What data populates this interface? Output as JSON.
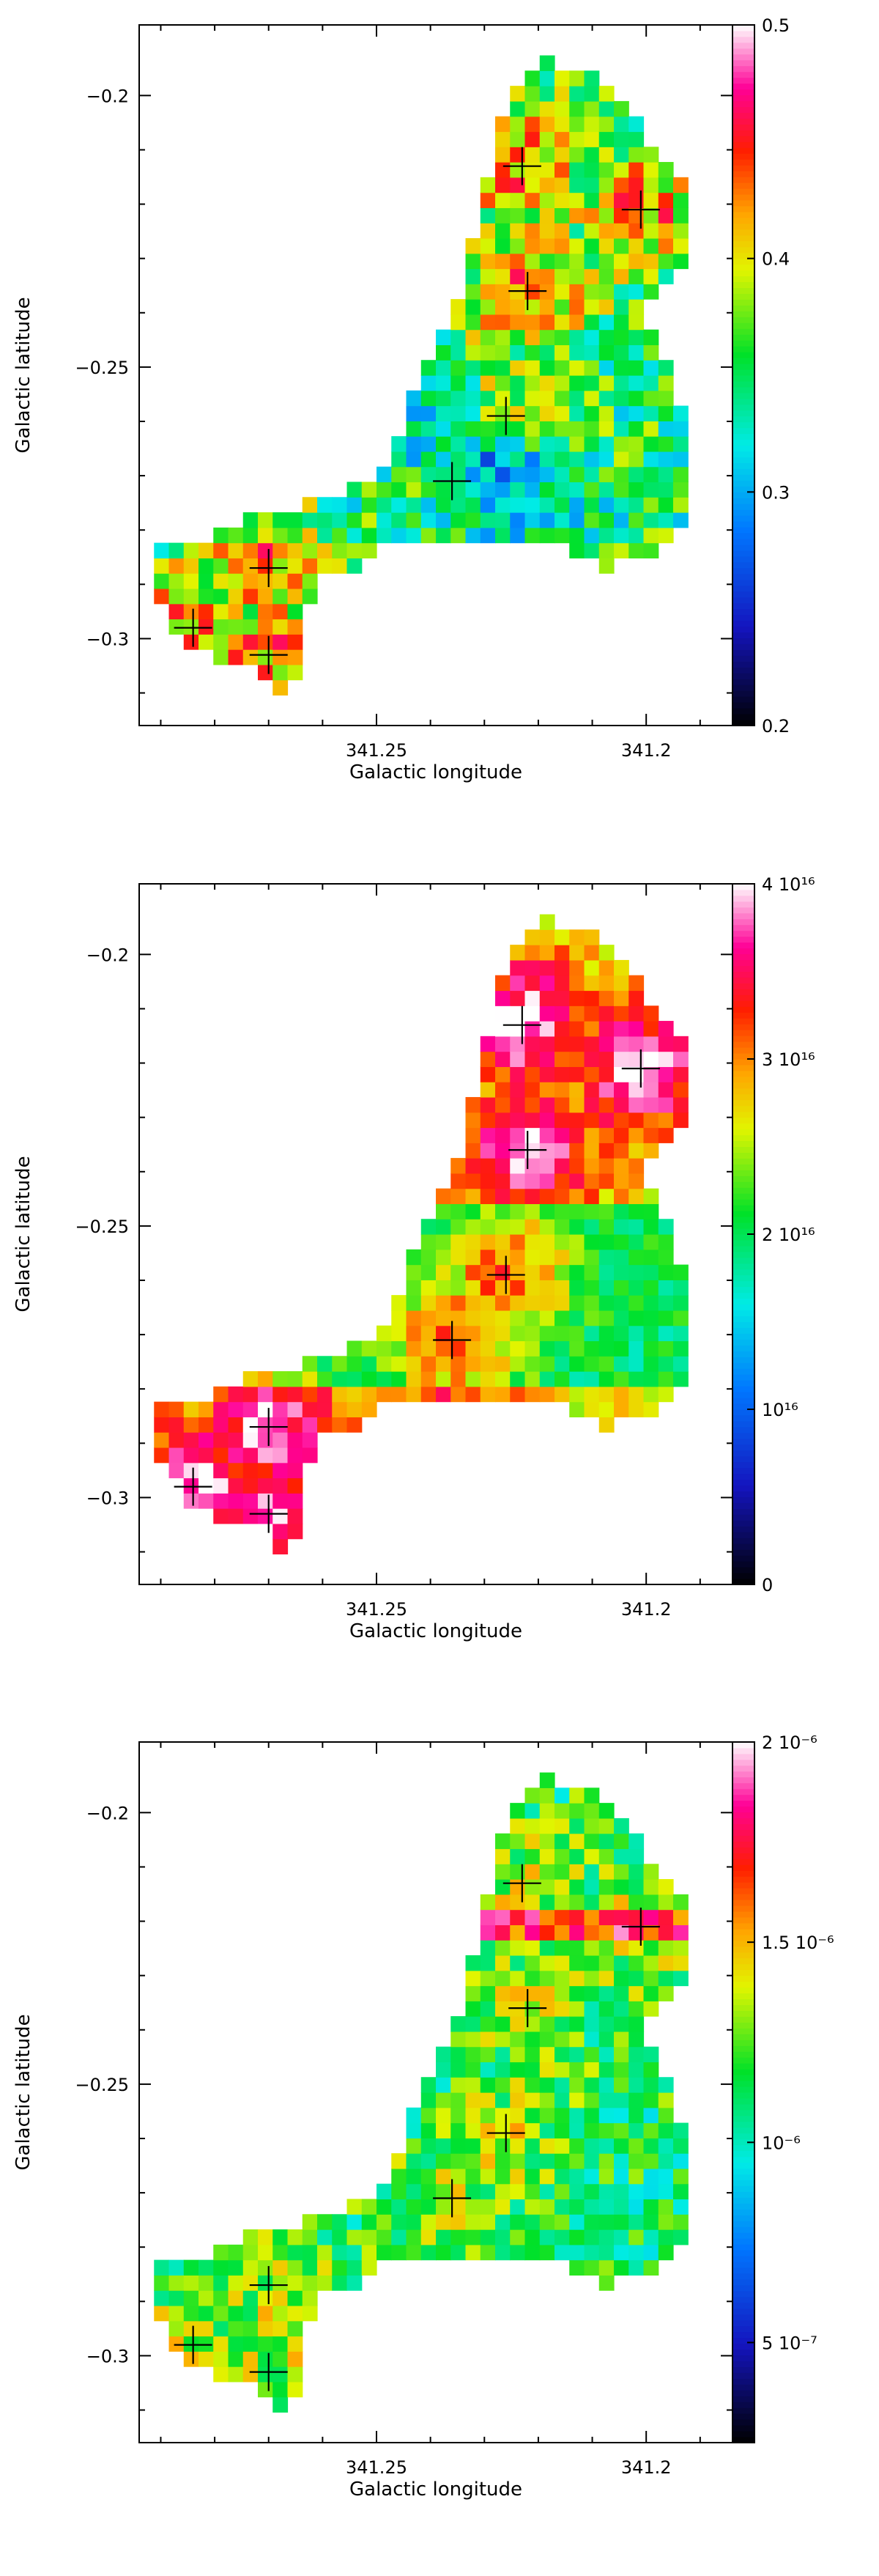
{
  "chart_data": [
    {
      "type": "heatmap",
      "xlabel": "Galactic longitude",
      "ylabel": "Galactic latitude",
      "x_ticks": [
        {
          "value": 341.25,
          "label": "341.25"
        },
        {
          "value": 341.2,
          "label": "341.2"
        }
      ],
      "y_ticks": [
        {
          "value": -0.2,
          "label": "−0.2"
        },
        {
          "value": -0.25,
          "label": "−0.25"
        },
        {
          "value": -0.3,
          "label": "−0.3"
        }
      ],
      "xlim": [
        341.294,
        341.184
      ],
      "ylim": [
        -0.316,
        -0.187
      ],
      "colorbar": {
        "min": 0.2,
        "max": 0.5,
        "scale": "linear",
        "ticks": [
          {
            "value": 0.2,
            "label": "0.2"
          },
          {
            "value": 0.3,
            "label": "0.3"
          },
          {
            "value": 0.4,
            "label": "0.4"
          },
          {
            "value": 0.5,
            "label": "0.5"
          }
        ]
      },
      "markers": [
        [
          341.223,
          -0.213
        ],
        [
          341.201,
          -0.221
        ],
        [
          341.222,
          -0.236
        ],
        [
          341.226,
          -0.259
        ],
        [
          341.236,
          -0.271
        ],
        [
          341.27,
          -0.287
        ],
        [
          341.284,
          -0.298
        ],
        [
          341.27,
          -0.303
        ]
      ]
    },
    {
      "type": "heatmap",
      "xlabel": "Galactic longitude",
      "ylabel": "Galactic latitude",
      "x_ticks": [
        {
          "value": 341.25,
          "label": "341.25"
        },
        {
          "value": 341.2,
          "label": "341.2"
        }
      ],
      "y_ticks": [
        {
          "value": -0.2,
          "label": "−0.2"
        },
        {
          "value": -0.25,
          "label": "−0.25"
        },
        {
          "value": -0.3,
          "label": "−0.3"
        }
      ],
      "xlim": [
        341.294,
        341.184
      ],
      "ylim": [
        -0.316,
        -0.187
      ],
      "colorbar": {
        "min": 0,
        "max": 4e+16,
        "scale": "linear",
        "ticks": [
          {
            "value": 0,
            "label": "0"
          },
          {
            "value": 1e+16,
            "label": "10¹⁶"
          },
          {
            "value": 2e+16,
            "label": "2 10¹⁶"
          },
          {
            "value": 3e+16,
            "label": "3 10¹⁶"
          },
          {
            "value": 4e+16,
            "label": "4 10¹⁶"
          }
        ]
      },
      "markers": [
        [
          341.223,
          -0.213
        ],
        [
          341.201,
          -0.221
        ],
        [
          341.222,
          -0.236
        ],
        [
          341.226,
          -0.259
        ],
        [
          341.236,
          -0.271
        ],
        [
          341.27,
          -0.287
        ],
        [
          341.284,
          -0.298
        ],
        [
          341.27,
          -0.303
        ]
      ]
    },
    {
      "type": "heatmap",
      "xlabel": "Galactic longitude",
      "ylabel": "Galactic latitude",
      "x_ticks": [
        {
          "value": 341.25,
          "label": "341.25"
        },
        {
          "value": 341.2,
          "label": "341.2"
        }
      ],
      "y_ticks": [
        {
          "value": -0.2,
          "label": "−0.2"
        },
        {
          "value": -0.25,
          "label": "−0.25"
        },
        {
          "value": -0.3,
          "label": "−0.3"
        }
      ],
      "xlim": [
        341.294,
        341.184
      ],
      "ylim": [
        -0.316,
        -0.187
      ],
      "colorbar": {
        "min": 2.5e-07,
        "max": 2e-06,
        "scale": "linear",
        "ticks": [
          {
            "value": 5e-07,
            "label": "5 10⁻⁷"
          },
          {
            "value": 1e-06,
            "label": "10⁻⁶"
          },
          {
            "value": 1.5e-06,
            "label": "1.5 10⁻⁶"
          },
          {
            "value": 2e-06,
            "label": "2 10⁻⁶"
          }
        ]
      },
      "markers": [
        [
          341.223,
          -0.213
        ],
        [
          341.201,
          -0.221
        ],
        [
          341.222,
          -0.236
        ],
        [
          341.226,
          -0.259
        ],
        [
          341.236,
          -0.271
        ],
        [
          341.27,
          -0.287
        ],
        [
          341.284,
          -0.298
        ],
        [
          341.27,
          -0.303
        ]
      ]
    }
  ]
}
